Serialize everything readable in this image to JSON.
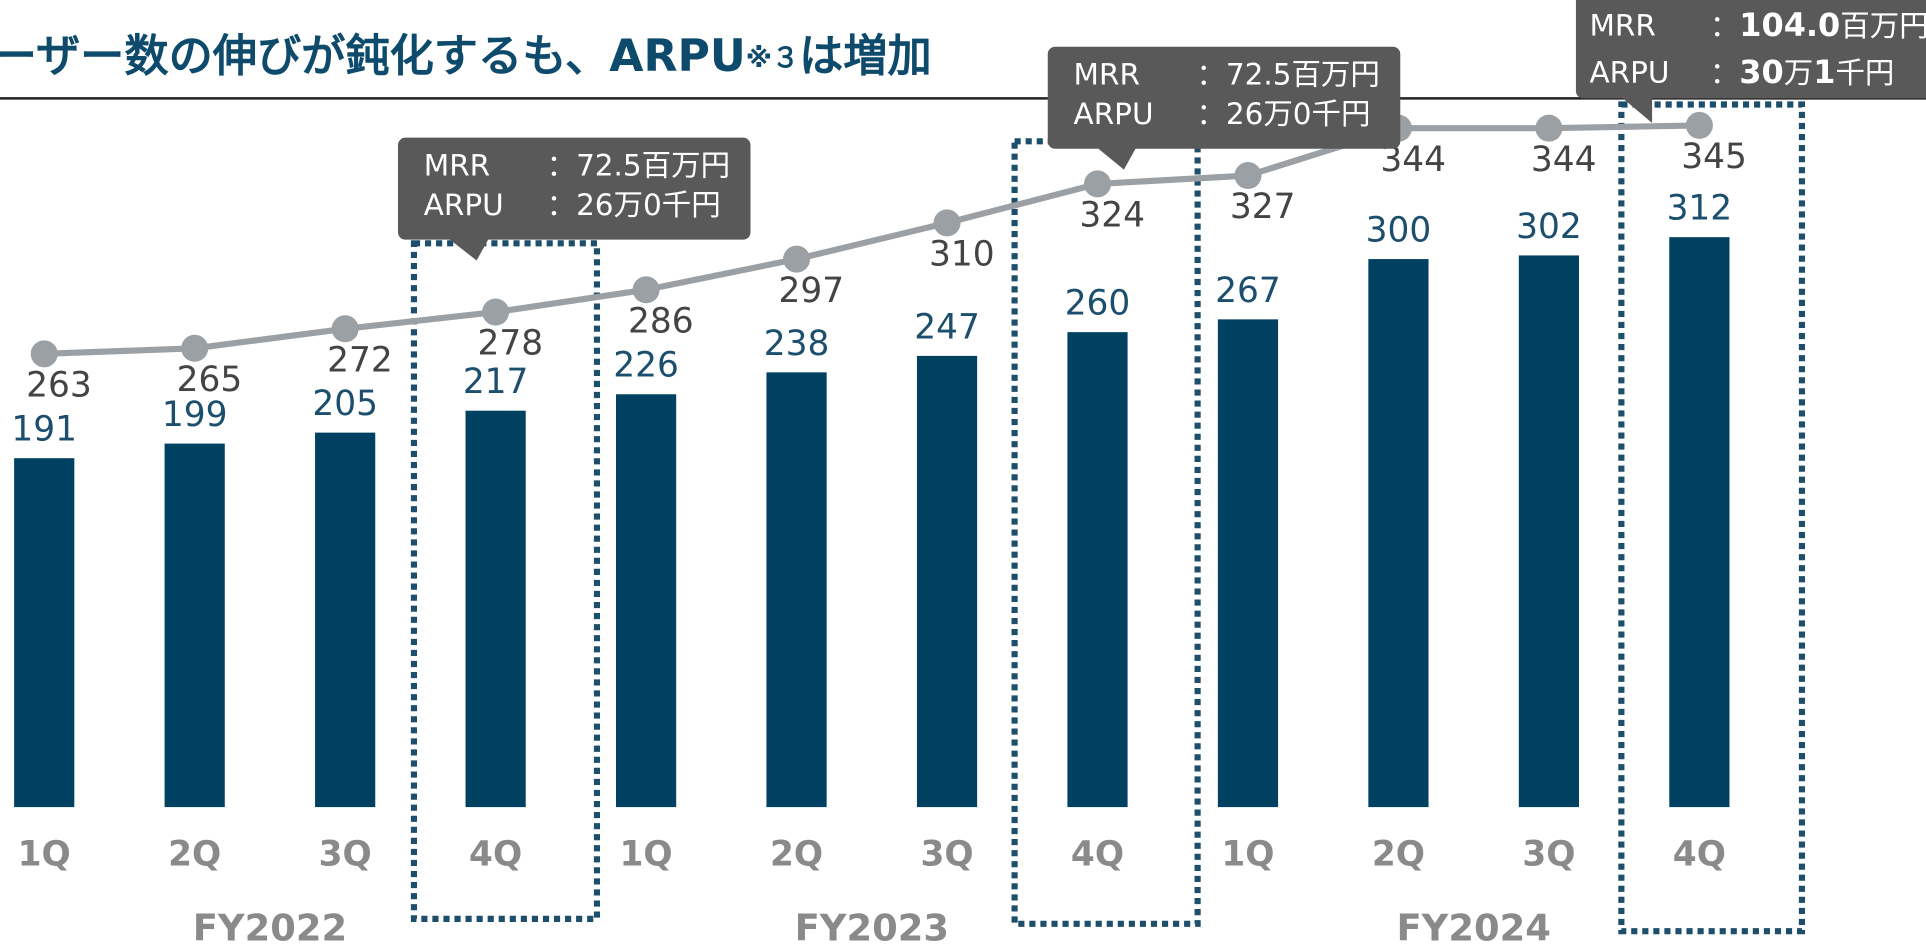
{
  "chart_data": {
    "type": "bar",
    "title": {
      "main": "ーザー数の伸びが鈍化するも、ARPU",
      "note": "※３",
      "end": "は増加"
    },
    "categories": [
      "1Q",
      "2Q",
      "3Q",
      "4Q",
      "1Q",
      "2Q",
      "3Q",
      "4Q",
      "1Q",
      "2Q",
      "3Q",
      "4Q"
    ],
    "groups": [
      "FY2022",
      "FY2023",
      "FY2024"
    ],
    "bars": {
      "color": "#004161",
      "values": [
        191,
        199,
        205,
        217,
        226,
        238,
        247,
        260,
        267,
        300,
        302,
        312
      ]
    },
    "line": {
      "type": "line",
      "color": "#9aa0a4",
      "values": [
        263,
        265,
        272,
        278,
        286,
        297,
        310,
        324,
        327,
        344,
        344,
        345
      ]
    },
    "annotations": [
      {
        "mrr_label": "MRR",
        "mrr": "：72.5百万円",
        "arpu_label": "ARPU",
        "arpu": "：26万0千円"
      },
      {
        "mrr_label": "MRR",
        "mrr": "：72.5百万円",
        "arpu_label": "ARPU",
        "arpu": "：26万0千円"
      },
      {
        "mrr_label": "MRR",
        "mrr_colon": "：",
        "mrr_num": "104.0",
        "mrr_unit": "百万円",
        "arpu_label": "ARPU",
        "arpu_colon": "：",
        "arpu_num1": "30",
        "arpu_unit1": "万",
        "arpu_num2": "1",
        "arpu_unit2": "千円"
      }
    ]
  }
}
